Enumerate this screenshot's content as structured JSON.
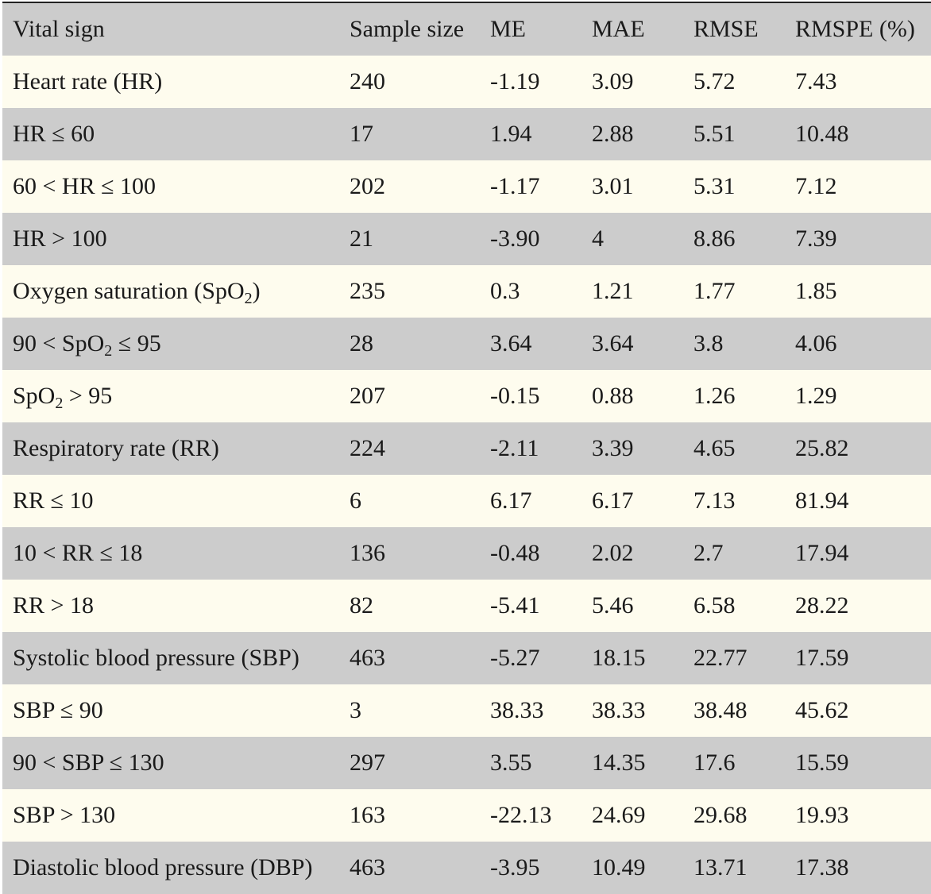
{
  "table": {
    "headers": [
      "Vital sign",
      "Sample size",
      "ME",
      "MAE",
      "RMSE",
      "RMSPE (%)"
    ],
    "rows": [
      {
        "label": "Heart rate (HR)",
        "values": [
          "240",
          "-1.19",
          "3.09",
          "5.72",
          "7.43"
        ]
      },
      {
        "label": "HR ≤ 60",
        "values": [
          "17",
          "1.94",
          "2.88",
          "5.51",
          "10.48"
        ]
      },
      {
        "label": "60 < HR ≤ 100",
        "values": [
          "202",
          "-1.17",
          "3.01",
          "5.31",
          "7.12"
        ]
      },
      {
        "label": "HR > 100",
        "values": [
          "21",
          "-3.90",
          "4",
          "8.86",
          "7.39"
        ]
      },
      {
        "label_pre": "Oxygen saturation (SpO",
        "label_sub": "2",
        "label_post": ")",
        "values": [
          "235",
          "0.3",
          "1.21",
          "1.77",
          "1.85"
        ]
      },
      {
        "label_pre": "90 < SpO",
        "label_sub": "2",
        "label_post": " ≤ 95",
        "values": [
          "28",
          "3.64",
          "3.64",
          "3.8",
          "4.06"
        ]
      },
      {
        "label_pre": "SpO",
        "label_sub": "2",
        "label_post": " > 95",
        "values": [
          "207",
          "-0.15",
          "0.88",
          "1.26",
          "1.29"
        ]
      },
      {
        "label": "Respiratory rate (RR)",
        "values": [
          "224",
          "-2.11",
          "3.39",
          "4.65",
          "25.82"
        ]
      },
      {
        "label": "RR ≤ 10",
        "values": [
          "6",
          "6.17",
          "6.17",
          "7.13",
          "81.94"
        ]
      },
      {
        "label": "10 < RR ≤ 18",
        "values": [
          "136",
          "-0.48",
          "2.02",
          "2.7",
          "17.94"
        ]
      },
      {
        "label": "RR > 18",
        "values": [
          "82",
          "-5.41",
          "5.46",
          "6.58",
          "28.22"
        ]
      },
      {
        "label": "Systolic blood pressure (SBP)",
        "values": [
          "463",
          "-5.27",
          "18.15",
          "22.77",
          "17.59"
        ]
      },
      {
        "label": "SBP ≤ 90",
        "values": [
          "3",
          "38.33",
          "38.33",
          "38.48",
          "45.62"
        ]
      },
      {
        "label": "90 < SBP ≤ 130",
        "values": [
          "297",
          "3.55",
          "14.35",
          "17.6",
          "15.59"
        ]
      },
      {
        "label": "SBP > 130",
        "values": [
          "163",
          "-22.13",
          "24.69",
          "29.68",
          "19.93"
        ]
      },
      {
        "label": "Diastolic blood pressure (DBP)",
        "values": [
          "463",
          "-3.95",
          "10.49",
          "13.71",
          "17.38"
        ]
      }
    ]
  },
  "colors": {
    "header_bg": "#cccccc",
    "row_light": "#fefcee",
    "row_dark": "#cccccc",
    "text": "#1a1a1a"
  }
}
